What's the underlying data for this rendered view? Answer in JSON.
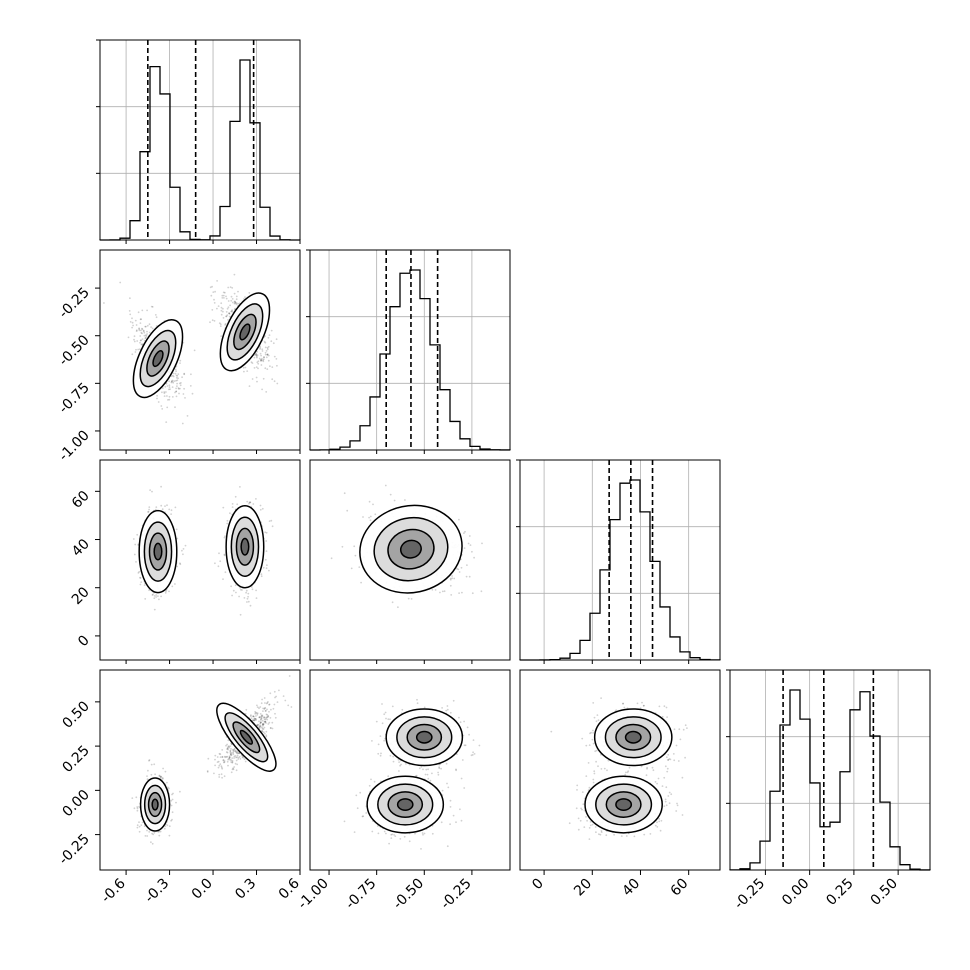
{
  "chart_data": {
    "type": "corner",
    "description": "Corner plot of a 4-parameter posterior sample: 1D histograms on the diagonal with dashed quantile lines, 2D density contours off-diagonal.",
    "parameters": [
      {
        "range": [
          -0.78,
          0.6
        ],
        "ticks": [
          "-0.6",
          "-0.3",
          "0.0",
          "0.3",
          "0.6"
        ],
        "tick_values": [
          -0.6,
          -0.3,
          0.0,
          0.3,
          0.6
        ],
        "quantiles": [
          -0.45,
          -0.12,
          0.28
        ],
        "modes": [
          {
            "mean": -0.38,
            "sd": 0.075,
            "weight": 0.5
          },
          {
            "mean": 0.22,
            "sd": 0.075,
            "weight": 0.5
          }
        ]
      },
      {
        "range": [
          -1.1,
          -0.05
        ],
        "ticks": [
          "-1.00",
          "-0.75",
          "-0.50",
          "-0.25"
        ],
        "tick_values": [
          -1.0,
          -0.75,
          -0.5,
          -0.25
        ],
        "quantiles": [
          -0.7,
          -0.57,
          -0.43
        ],
        "modes": [
          {
            "mean": -0.57,
            "sd": 0.12,
            "weight": 1.0
          }
        ]
      },
      {
        "range": [
          -10,
          73
        ],
        "ticks": [
          "0",
          "20",
          "40",
          "60"
        ],
        "tick_values": [
          0,
          20,
          40,
          60
        ],
        "quantiles": [
          27,
          36,
          45
        ],
        "modes": [
          {
            "mean": 36,
            "sd": 9,
            "weight": 1.0
          }
        ]
      },
      {
        "range": [
          -0.45,
          0.68
        ],
        "ticks": [
          "-0.25",
          "0.00",
          "0.25",
          "0.50"
        ],
        "tick_values": [
          -0.25,
          0.0,
          0.25,
          0.5
        ],
        "quantiles": [
          -0.15,
          0.08,
          0.36
        ],
        "modes": [
          {
            "mean": -0.08,
            "sd": 0.09,
            "weight": 0.5
          },
          {
            "mean": 0.3,
            "sd": 0.09,
            "weight": 0.5
          }
        ]
      }
    ],
    "contour_blobs": {
      "1-0": [
        {
          "cx": -0.38,
          "cy": -0.62,
          "rx": 0.13,
          "ry": 0.22,
          "rot": 25
        },
        {
          "cx": 0.22,
          "cy": -0.48,
          "rx": 0.13,
          "ry": 0.22,
          "rot": 25
        }
      ],
      "2-0": [
        {
          "cx": -0.38,
          "cy": 35,
          "rx": 0.13,
          "ry": 17,
          "rot": 0
        },
        {
          "cx": 0.22,
          "cy": 37,
          "rx": 0.13,
          "ry": 17,
          "rot": 0
        }
      ],
      "2-1": [
        {
          "cx": -0.57,
          "cy": 36,
          "rx": 0.27,
          "ry": 18,
          "rot": -12
        }
      ],
      "3-0": [
        {
          "cx": -0.4,
          "cy": -0.08,
          "rx": 0.1,
          "ry": 0.15,
          "rot": 0
        },
        {
          "cx": 0.23,
          "cy": 0.3,
          "rx": 0.1,
          "ry": 0.24,
          "rot": -40
        }
      ],
      "3-1": [
        {
          "cx": -0.6,
          "cy": -0.08,
          "rx": 0.2,
          "ry": 0.16,
          "rot": 0
        },
        {
          "cx": -0.5,
          "cy": 0.3,
          "rx": 0.2,
          "ry": 0.16,
          "rot": 0
        }
      ],
      "3-2": [
        {
          "cx": 33,
          "cy": -0.08,
          "rx": 16,
          "ry": 0.16,
          "rot": 0
        },
        {
          "cx": 37,
          "cy": 0.3,
          "rx": 16,
          "ry": 0.16,
          "rot": 0
        }
      ]
    },
    "contour_levels": [
      0.35,
      0.6,
      0.85,
      0.95
    ],
    "quantile_line_style": "dashed",
    "grid": true,
    "title": "",
    "labels": [
      "",
      "",
      "",
      ""
    ]
  }
}
